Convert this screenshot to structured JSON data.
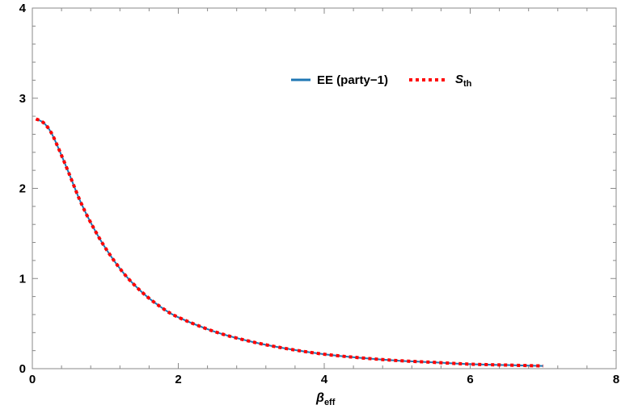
{
  "chart_data": {
    "type": "line",
    "title": "",
    "xlabel": "β",
    "xlabel_sub": "eff",
    "ylabel": "",
    "xlim": [
      0,
      8
    ],
    "ylim": [
      0,
      4
    ],
    "x_ticks": [
      0,
      2,
      4,
      6,
      8
    ],
    "y_ticks": [
      0,
      1,
      2,
      3,
      4
    ],
    "grid": false,
    "legend_position": "top-center",
    "x": [
      0.05,
      0.15,
      0.25,
      0.35,
      0.5,
      0.65,
      0.8,
      1.0,
      1.25,
      1.5,
      1.75,
      2.0,
      2.5,
      3.0,
      3.5,
      4.0,
      4.5,
      5.0,
      5.5,
      6.0,
      6.5,
      7.0
    ],
    "series": [
      {
        "name": "EE (party−1)",
        "color": "#1f77b4",
        "style": "solid",
        "values": [
          2.77,
          2.73,
          2.63,
          2.46,
          2.17,
          1.87,
          1.62,
          1.34,
          1.06,
          0.85,
          0.69,
          0.57,
          0.41,
          0.3,
          0.22,
          0.16,
          0.12,
          0.09,
          0.07,
          0.05,
          0.04,
          0.03
        ]
      },
      {
        "name": "S",
        "name_sub": "th",
        "color": "#ff0000",
        "style": "dotted",
        "values": [
          2.77,
          2.73,
          2.63,
          2.46,
          2.17,
          1.87,
          1.62,
          1.34,
          1.06,
          0.85,
          0.69,
          0.57,
          0.41,
          0.3,
          0.22,
          0.16,
          0.12,
          0.09,
          0.07,
          0.05,
          0.04,
          0.03
        ]
      }
    ]
  }
}
